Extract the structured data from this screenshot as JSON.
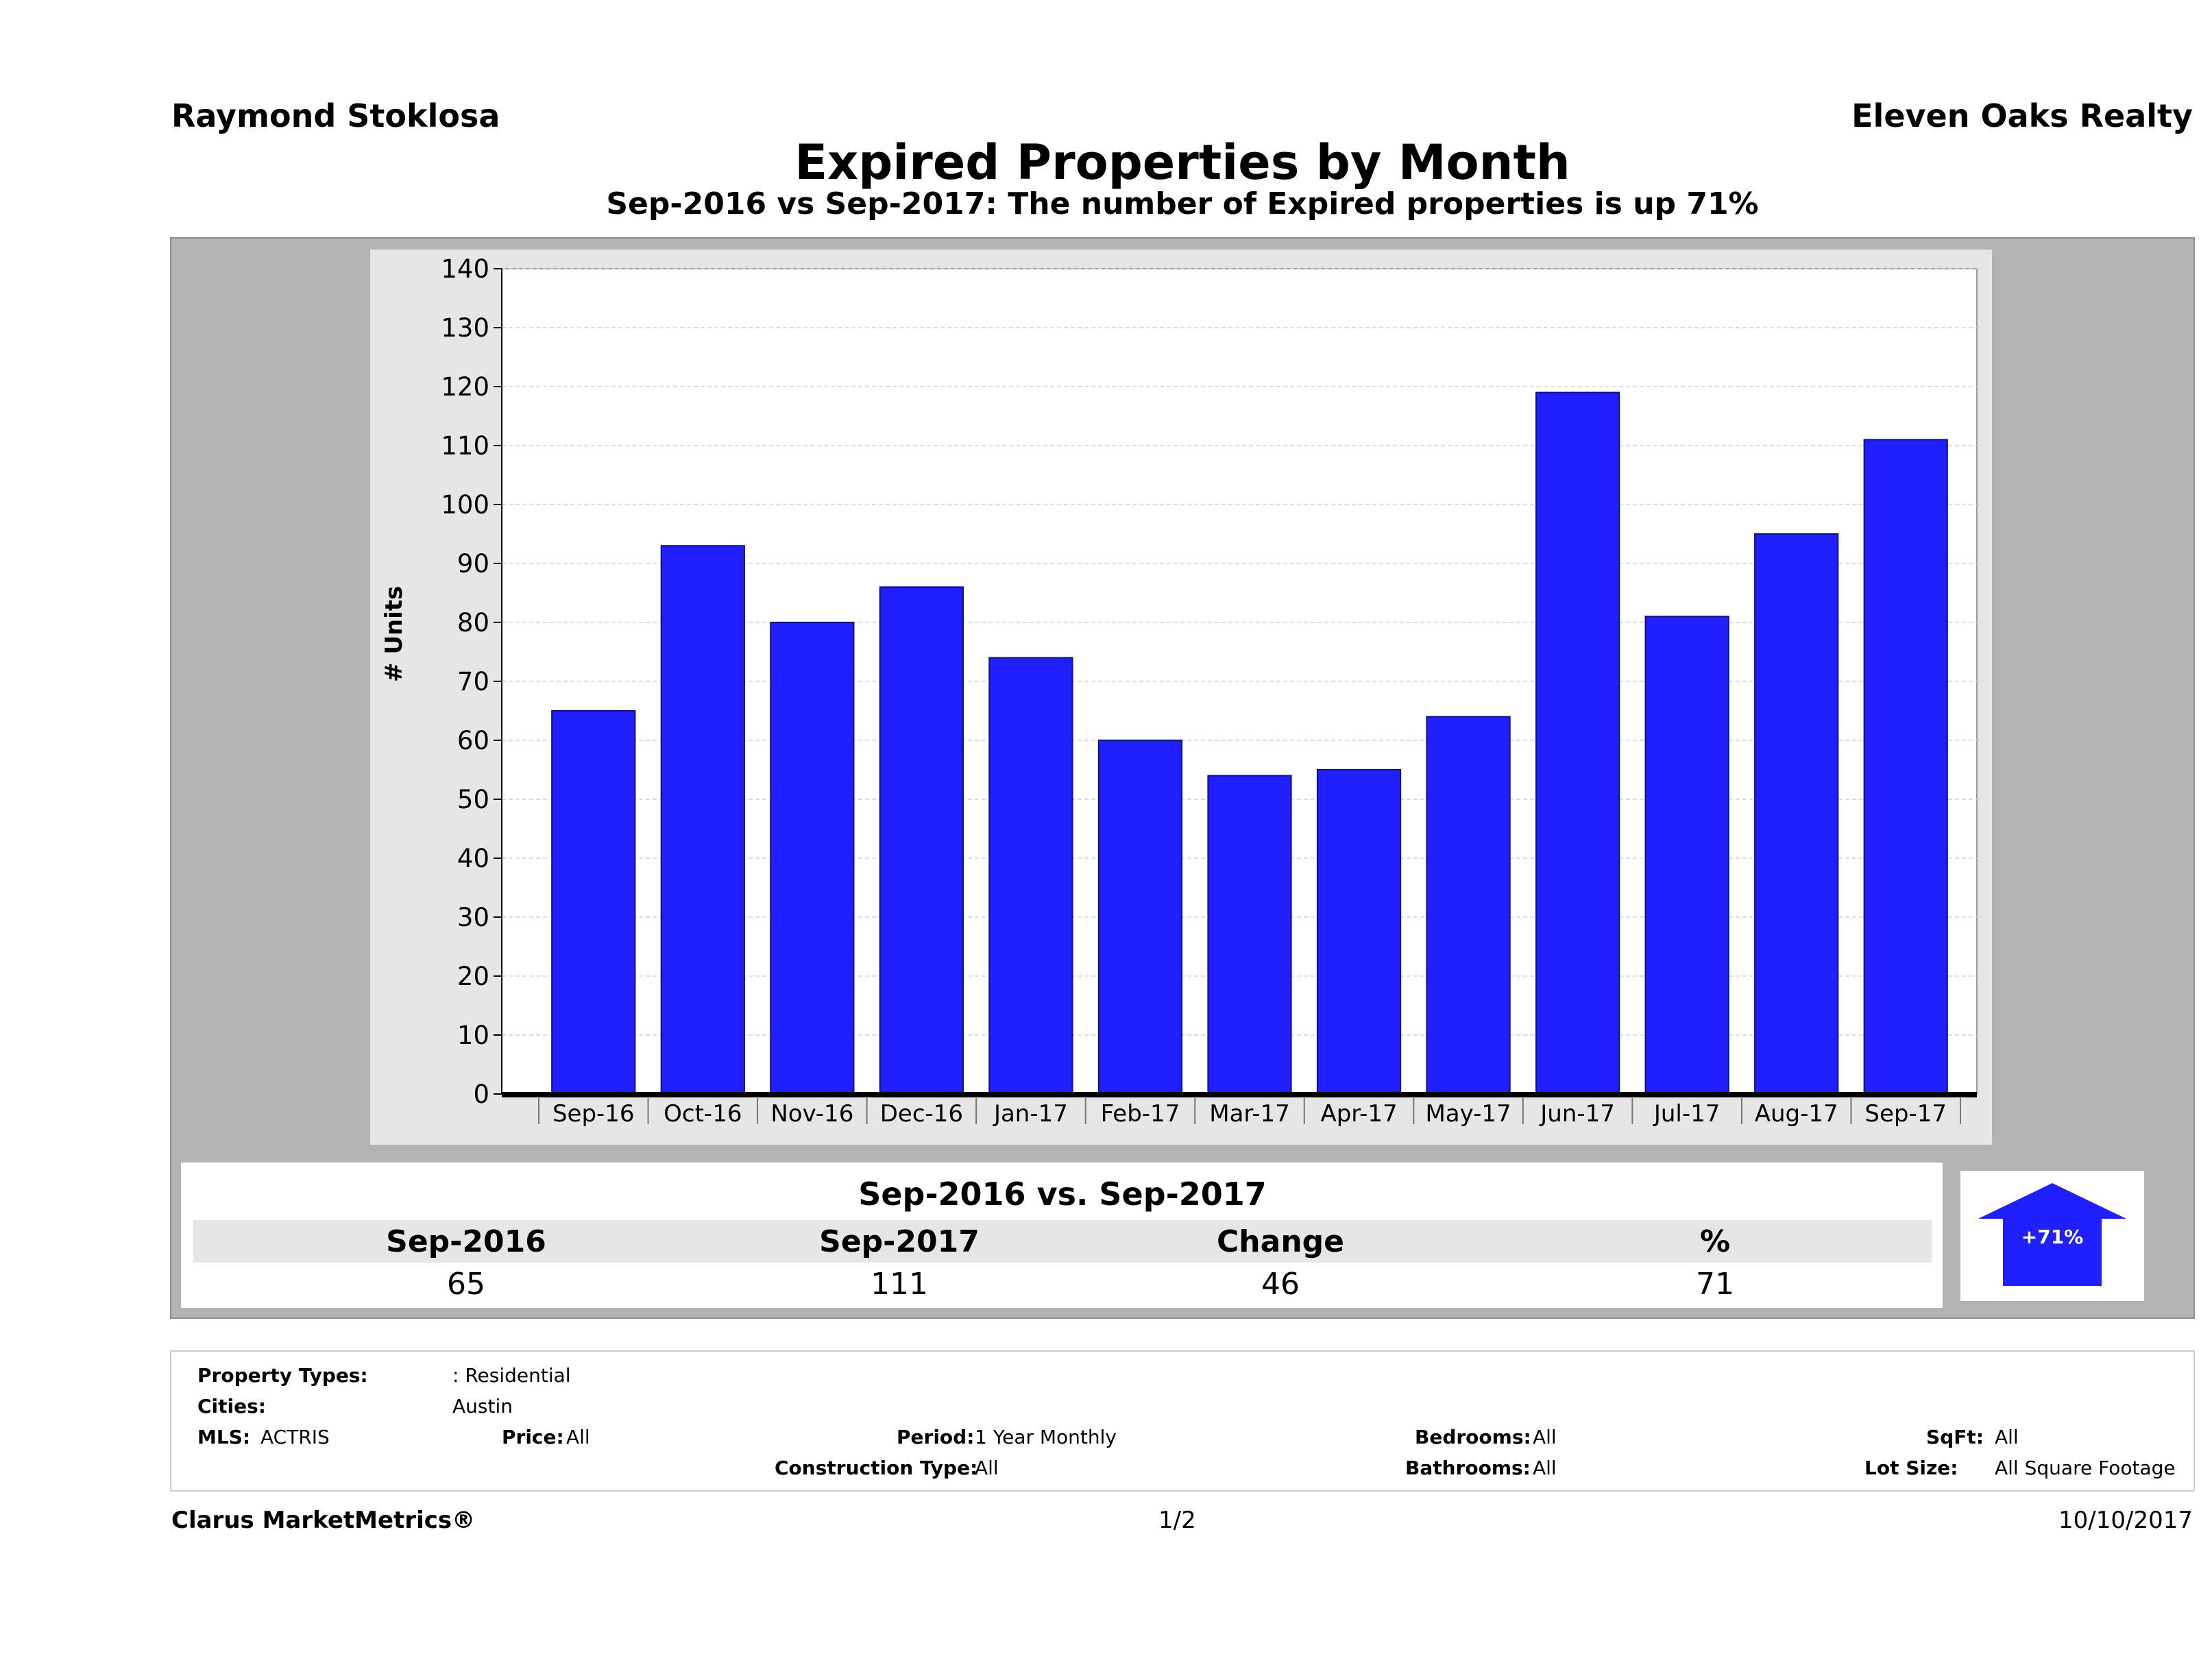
{
  "header": {
    "agent": "Raymond Stoklosa",
    "company": "Eleven Oaks Realty",
    "title": "Expired Properties by Month",
    "subtitle": "Sep-2016 vs Sep-2017: The number of Expired  properties is up 71%"
  },
  "chart_data": {
    "type": "bar",
    "categories": [
      "Sep-16",
      "Oct-16",
      "Nov-16",
      "Dec-16",
      "Jan-17",
      "Feb-17",
      "Mar-17",
      "Apr-17",
      "May-17",
      "Jun-17",
      "Jul-17",
      "Aug-17",
      "Sep-17"
    ],
    "values": [
      65,
      93,
      80,
      86,
      74,
      60,
      54,
      55,
      64,
      119,
      81,
      95,
      111
    ],
    "ylabel": "# Units",
    "xlabel": "",
    "ylim": [
      0,
      140
    ],
    "yticks": [
      0,
      10,
      20,
      30,
      40,
      50,
      60,
      70,
      80,
      90,
      100,
      110,
      120,
      130,
      140
    ],
    "bar_color": "#1f1fff",
    "grid": true
  },
  "comparison": {
    "heading": "Sep-2016 vs. Sep-2017",
    "columns": [
      "Sep-2016",
      "Sep-2017",
      "Change",
      "%"
    ],
    "values": [
      "65",
      "111",
      "46",
      "71"
    ],
    "badge": "+71%",
    "badge_color": "#1f1fff"
  },
  "criteria": {
    "property_types_label": "Property Types:",
    "property_types_value": ": Residential",
    "cities_label": "Cities:",
    "cities_value": "Austin",
    "mls_label": "MLS:",
    "mls_value": "ACTRIS",
    "price_label": "Price:",
    "price_value": "All",
    "period_label": "Period:",
    "period_value": "1 Year Monthly",
    "construction_label": "Construction Type:",
    "construction_value": "All",
    "bedrooms_label": "Bedrooms:",
    "bedrooms_value": "All",
    "bathrooms_label": "Bathrooms:",
    "bathrooms_value": "All",
    "sqft_label": "SqFt:",
    "sqft_value": "All",
    "lotsize_label": "Lot Size:",
    "lotsize_value": "All Square Footage"
  },
  "footer": {
    "brand": "Clarus MarketMetrics®",
    "page": "1/2",
    "date": "10/10/2017"
  }
}
